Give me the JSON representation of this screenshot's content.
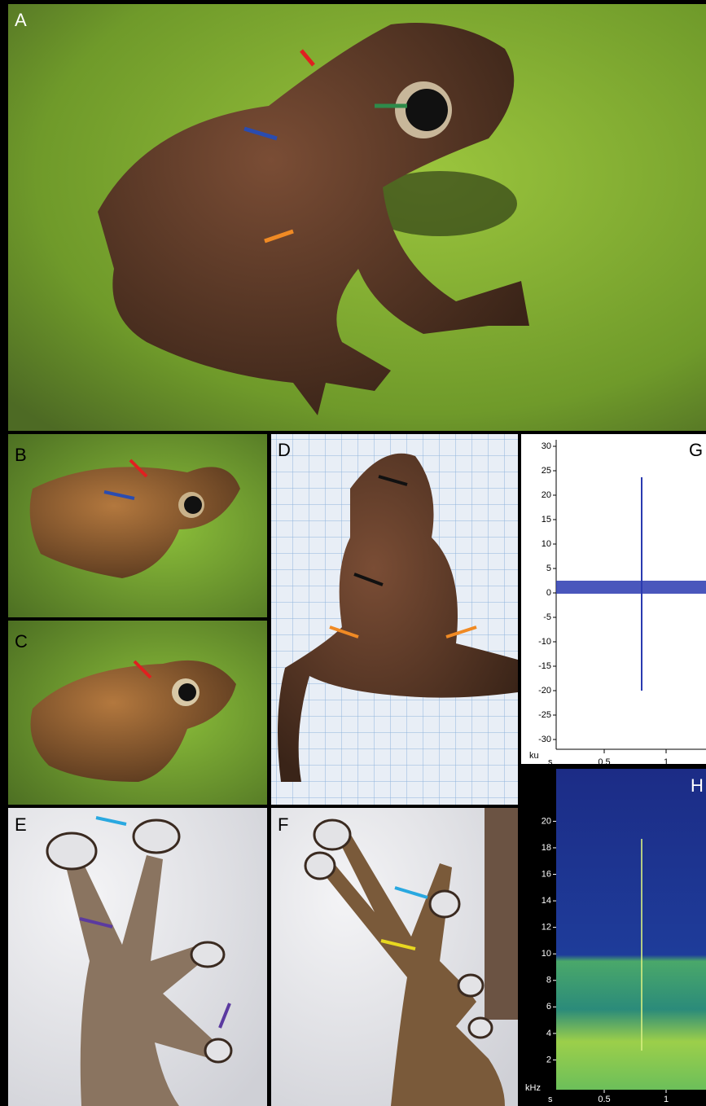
{
  "photo_panels": [
    {
      "label": "A"
    },
    {
      "label": "B"
    },
    {
      "label": "C"
    },
    {
      "label": "D"
    },
    {
      "label": "E"
    },
    {
      "label": "F"
    }
  ],
  "oscillogram": {
    "label": "G",
    "y_unit": "ku",
    "x_unit": "s",
    "yticks": [
      30,
      25,
      20,
      15,
      10,
      5,
      0,
      -5,
      -10,
      -15,
      -20,
      -25,
      -30
    ],
    "xticks": [
      0.5,
      1
    ]
  },
  "spectrogram": {
    "label": "H",
    "y_unit": "kHz",
    "x_unit": "s",
    "yticks": [
      2,
      4,
      6,
      8,
      10,
      12,
      14,
      16,
      18,
      20
    ],
    "xticks": [
      0.5,
      1
    ]
  }
}
